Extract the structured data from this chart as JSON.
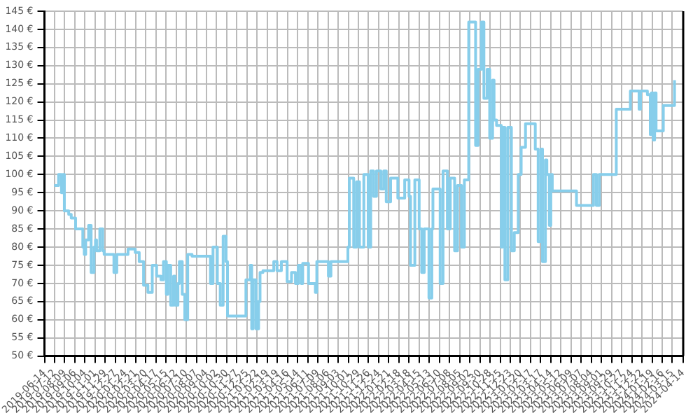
{
  "chart_data": {
    "type": "step",
    "grid": true,
    "legend": false,
    "marker": "none",
    "line_style": "solid",
    "xlim": [
      "2019-06-14",
      "2024-04-14"
    ],
    "xticks": [
      "2019-06-14",
      "2019-07-12",
      "2019-08-09",
      "2019-09-06",
      "2019-10-04",
      "2019-11-01",
      "2019-11-29",
      "2019-12-27",
      "2020-01-24",
      "2020-02-21",
      "2020-03-20",
      "2020-04-17",
      "2020-05-15",
      "2020-06-12",
      "2020-07-10",
      "2020-08-07",
      "2020-09-04",
      "2020-10-02",
      "2020-10-30",
      "2020-11-27",
      "2020-12-25",
      "2021-01-22",
      "2021-02-19",
      "2021-03-19",
      "2021-04-16",
      "2021-05-14",
      "2021-06-11",
      "2021-07-09",
      "2021-08-06",
      "2021-09-03",
      "2021-10-01",
      "2021-10-29",
      "2021-11-26",
      "2021-12-24",
      "2022-01-21",
      "2022-02-18",
      "2022-03-18",
      "2022-04-15",
      "2022-05-13",
      "2022-06-10",
      "2022-07-08",
      "2022-08-05",
      "2022-09-02",
      "2022-09-30",
      "2022-10-28",
      "2022-11-25",
      "2022-12-23",
      "2023-01-20",
      "2023-02-17",
      "2023-03-17",
      "2023-04-14",
      "2023-05-12",
      "2023-06-09",
      "2023-07-07",
      "2023-08-04",
      "2023-09-01",
      "2023-09-29",
      "2023-10-27",
      "2023-11-24",
      "2023-12-22",
      "2024-01-19",
      "2024-02-16",
      "2024-03-15",
      "2024-04-14"
    ],
    "ylim": [
      50,
      145
    ],
    "yticks": [
      {
        "value": 50,
        "label": "50 €"
      },
      {
        "value": 55,
        "label": "55 €"
      },
      {
        "value": 60,
        "label": "60 €"
      },
      {
        "value": 65,
        "label": "65 €"
      },
      {
        "value": 70,
        "label": "70 €"
      },
      {
        "value": 75,
        "label": "75 €"
      },
      {
        "value": 80,
        "label": "80 €"
      },
      {
        "value": 85,
        "label": "85 €"
      },
      {
        "value": 90,
        "label": "90 €"
      },
      {
        "value": 95,
        "label": "95 €"
      },
      {
        "value": 100,
        "label": "100 €"
      },
      {
        "value": 105,
        "label": "105 €"
      },
      {
        "value": 110,
        "label": "110 €"
      },
      {
        "value": 115,
        "label": "115 €"
      },
      {
        "value": 120,
        "label": "120 €"
      },
      {
        "value": 125,
        "label": "125 €"
      },
      {
        "value": 130,
        "label": "130 €"
      },
      {
        "value": 135,
        "label": "135 €"
      },
      {
        "value": 140,
        "label": "140 €"
      },
      {
        "value": 145,
        "label": "145 €"
      }
    ],
    "series": [
      {
        "color": "#87ceeb",
        "x": [
          "2019-07-11",
          "2019-07-23",
          "2019-07-31",
          "2019-08-04",
          "2019-08-08",
          "2019-08-20",
          "2019-08-27",
          "2019-09-08",
          "2019-09-28",
          "2019-10-02",
          "2019-10-06",
          "2019-10-14",
          "2019-10-21",
          "2019-10-29",
          "2019-11-02",
          "2019-11-05",
          "2019-11-14",
          "2019-11-22",
          "2019-11-26",
          "2019-12-23",
          "2019-12-31",
          "2020-01-31",
          "2020-02-20",
          "2020-03-02",
          "2020-03-14",
          "2020-03-26",
          "2020-04-07",
          "2020-04-19",
          "2020-05-01",
          "2020-05-08",
          "2020-05-16",
          "2020-05-20",
          "2020-05-28",
          "2020-06-05",
          "2020-06-09",
          "2020-06-17",
          "2020-06-21",
          "2020-06-29",
          "2020-07-06",
          "2020-07-14",
          "2020-07-26",
          "2020-09-15",
          "2020-09-22",
          "2020-10-04",
          "2020-10-12",
          "2020-10-20",
          "2020-10-28",
          "2020-11-01",
          "2020-12-22",
          "2021-01-03",
          "2021-01-07",
          "2021-01-11",
          "2021-01-19",
          "2021-01-26",
          "2021-01-30",
          "2021-02-07",
          "2021-03-09",
          "2021-03-18",
          "2021-03-30",
          "2021-04-15",
          "2021-04-27",
          "2021-05-08",
          "2021-05-16",
          "2021-05-24",
          "2021-05-28",
          "2021-06-13",
          "2021-07-02",
          "2021-07-06",
          "2021-08-07",
          "2021-08-14",
          "2021-09-30",
          "2021-10-04",
          "2021-10-16",
          "2021-10-24",
          "2021-11-01",
          "2021-11-13",
          "2021-11-25",
          "2021-12-02",
          "2021-12-10",
          "2021-12-18",
          "2021-12-30",
          "2022-01-07",
          "2022-01-14",
          "2022-01-26",
          "2022-02-15",
          "2022-03-06",
          "2022-03-18",
          "2022-03-22",
          "2022-04-03",
          "2022-04-15",
          "2022-04-22",
          "2022-04-29",
          "2022-05-12",
          "2022-05-20",
          "2022-05-23",
          "2022-06-12",
          "2022-06-20",
          "2022-07-02",
          "2022-07-10",
          "2022-07-22",
          "2022-07-30",
          "2022-08-10",
          "2022-08-18",
          "2022-08-30",
          "2022-09-18",
          "2022-09-25",
          "2022-10-04",
          "2022-10-11",
          "2022-10-20",
          "2022-10-27",
          "2022-11-04",
          "2022-11-08",
          "2022-11-15",
          "2022-11-28",
          "2022-12-01",
          "2022-12-08",
          "2022-12-16",
          "2022-12-26",
          "2023-01-03",
          "2023-01-14",
          "2023-01-22",
          "2023-02-03",
          "2023-03-02",
          "2023-03-10",
          "2023-03-18",
          "2023-03-22",
          "2023-03-30",
          "2023-04-03",
          "2023-04-10",
          "2023-04-14",
          "2023-04-18",
          "2023-06-24",
          "2023-08-10",
          "2023-08-18",
          "2023-08-26",
          "2023-10-12",
          "2023-11-20",
          "2023-12-14",
          "2023-12-18",
          "2024-01-06",
          "2024-01-14",
          "2024-01-17",
          "2024-01-22",
          "2024-01-26",
          "2024-01-30",
          "2024-02-19",
          "2024-03-21"
        ],
        "values": [
          97,
          100,
          95,
          100,
          90,
          89,
          88,
          85,
          80,
          78,
          82,
          86,
          73,
          80,
          82,
          79,
          85,
          79,
          78,
          73,
          78,
          79.5,
          78.5,
          76,
          69.5,
          67.5,
          75,
          72,
          71,
          76,
          67,
          75,
          64,
          72,
          64,
          70,
          76,
          67,
          60,
          78,
          77.5,
          70,
          80,
          70,
          64,
          83,
          76,
          61,
          71,
          75,
          57.5,
          71,
          57.5,
          65,
          73,
          73.5,
          76,
          73.5,
          76,
          70.5,
          73,
          70,
          75,
          70,
          75.5,
          70,
          67.5,
          76,
          72,
          76,
          80,
          99,
          80,
          98,
          80,
          100,
          80,
          101,
          94,
          101,
          96,
          101,
          92.5,
          99,
          93.5,
          98.5,
          94,
          75,
          98.5,
          85,
          73,
          85,
          66,
          85,
          96,
          70,
          101,
          85,
          99,
          79,
          97,
          80,
          98.5,
          142,
          108,
          129,
          142,
          121,
          129,
          110,
          126,
          115,
          113.5,
          80,
          113,
          71,
          113,
          79,
          84,
          100,
          107.5,
          114,
          107,
          81.5,
          107,
          76,
          104,
          100,
          86,
          100,
          95.5,
          91.5,
          100,
          91.5,
          100,
          118,
          123,
          118,
          123,
          122,
          111,
          122.5,
          109.5,
          122.5,
          112,
          119,
          126
        ]
      }
    ]
  }
}
